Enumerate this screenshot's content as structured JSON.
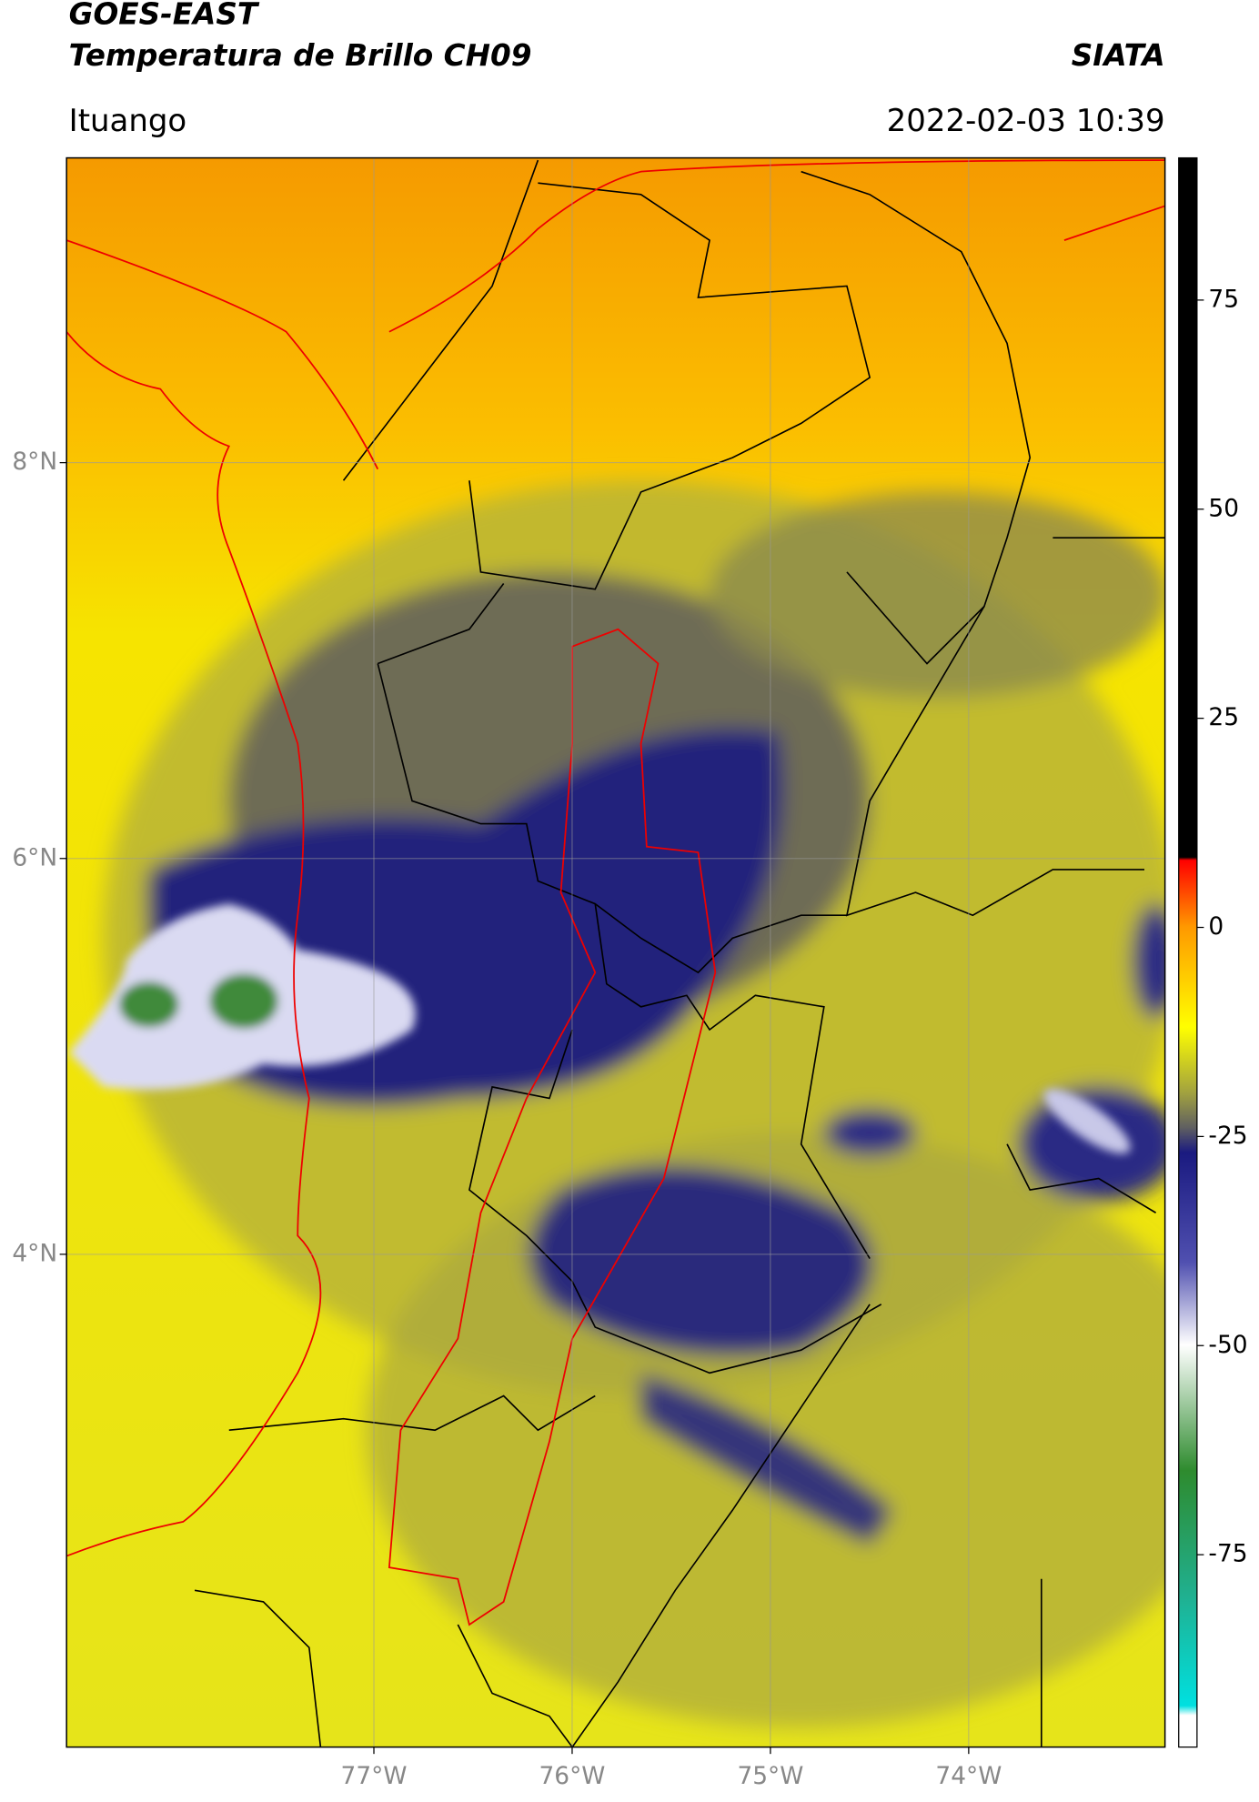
{
  "header": {
    "title": "GOES-EAST",
    "subtitle": "Temperatura de Brillo CH09",
    "brand": "SIATA",
    "location": "Ituango",
    "datetime": "2022-02-03 10:39"
  },
  "map": {
    "lat_range": [
      1.51,
      9.54
    ],
    "lon_range": [
      -78.55,
      -73.01
    ],
    "lat_ticks": [
      {
        "value": 8,
        "label": "8°N"
      },
      {
        "value": 6,
        "label": "6°N"
      },
      {
        "value": 4,
        "label": "4°N"
      }
    ],
    "lon_ticks": [
      {
        "value": -77,
        "label": "77°W"
      },
      {
        "value": -76,
        "label": "76°W"
      },
      {
        "value": -75,
        "label": "75°W"
      },
      {
        "value": -74,
        "label": "74°W"
      }
    ],
    "grid": true
  },
  "colorbar": {
    "clim": [
      -98,
      92
    ],
    "ticks": [
      75,
      50,
      25,
      0,
      -25,
      -50,
      -75
    ]
  }
}
